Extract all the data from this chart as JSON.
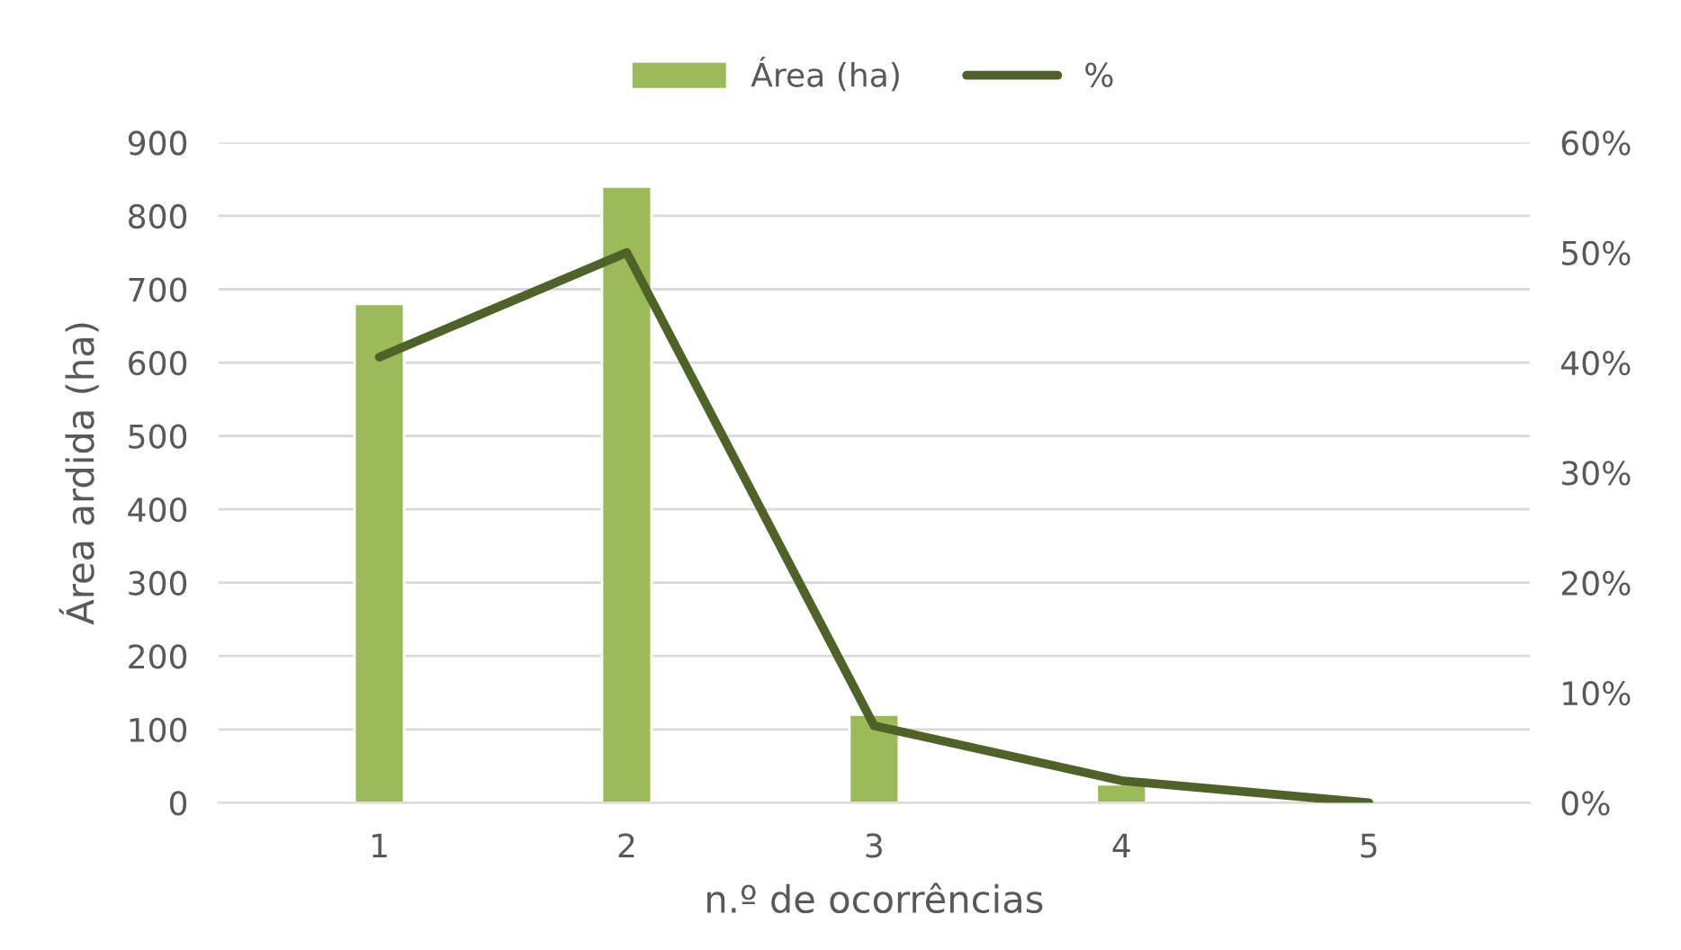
{
  "chart_data": {
    "type": "bar",
    "xlabel": "n.º de ocorrências",
    "ylabel": "Área ardida (ha)",
    "categories": [
      "1",
      "2",
      "3",
      "4",
      "5"
    ],
    "series": [
      {
        "name": "Área (ha)",
        "color": "#9bbb59",
        "values": [
          680,
          840,
          120,
          25,
          null
        ]
      },
      {
        "name": "%",
        "type": "line",
        "axis": "y2",
        "color": "#4f6228",
        "values": [
          40.5,
          50,
          7,
          2,
          0
        ]
      }
    ],
    "ylim": [
      0,
      900
    ],
    "yticks": [
      0,
      100,
      200,
      300,
      400,
      500,
      600,
      700,
      800,
      900
    ],
    "y2lim": [
      0,
      60
    ],
    "y2ticks": [
      {
        "value": 0,
        "label": "0%"
      },
      {
        "value": 10,
        "label": "10%"
      },
      {
        "value": 20,
        "label": "20%"
      },
      {
        "value": 30,
        "label": "30%"
      },
      {
        "value": 40,
        "label": "40%"
      },
      {
        "value": 50,
        "label": "50%"
      },
      {
        "value": 60,
        "label": "60%"
      }
    ],
    "grid": "y",
    "legend": "top"
  }
}
